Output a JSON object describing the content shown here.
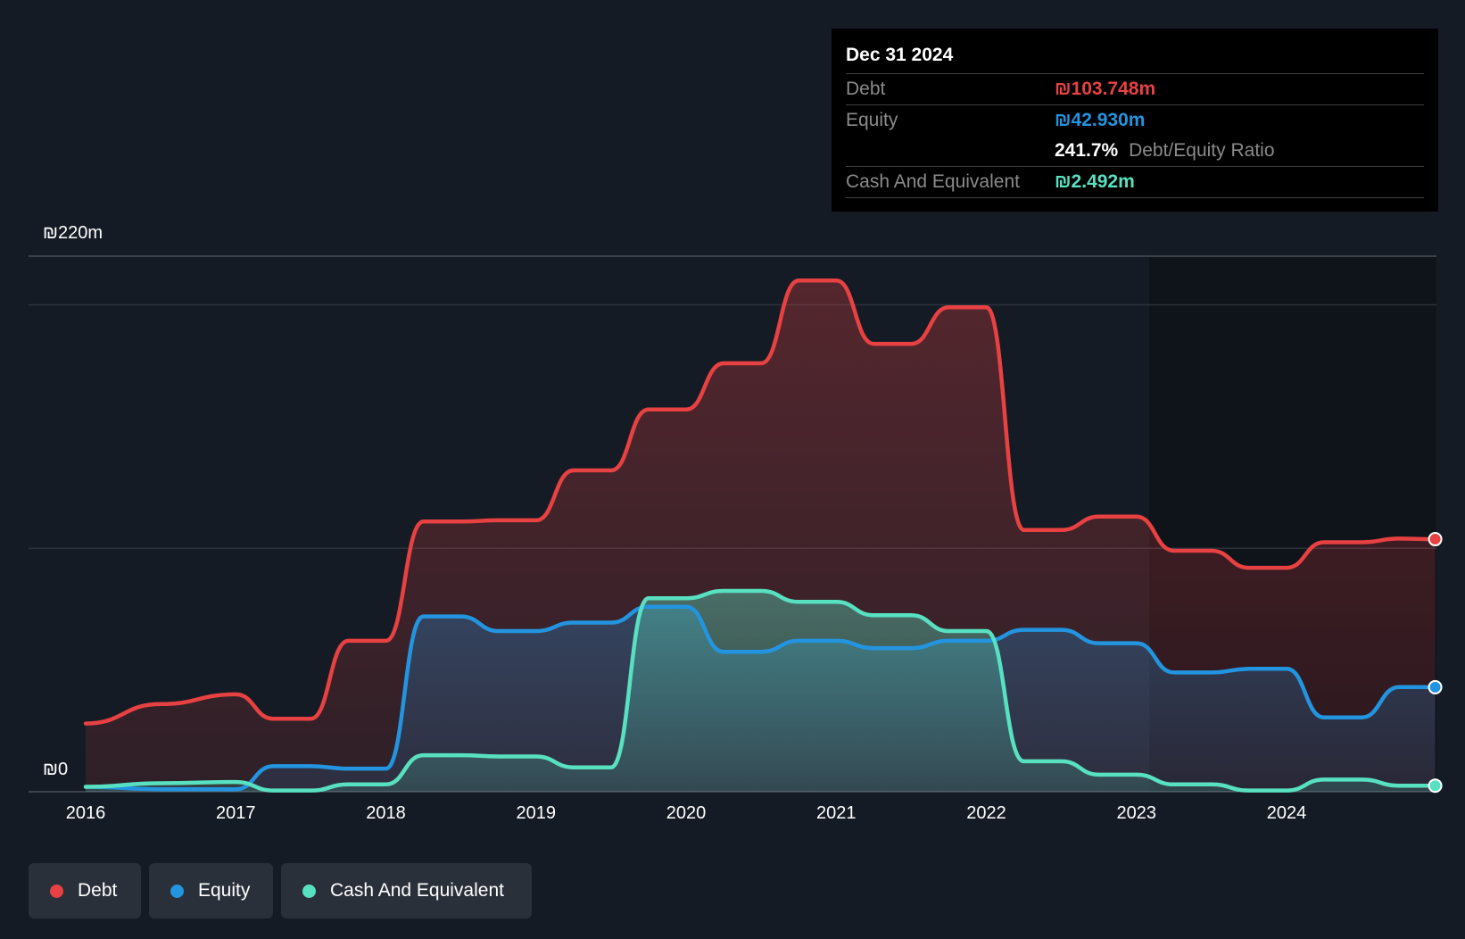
{
  "chart_data": {
    "type": "area",
    "ylim": [
      0,
      220
    ],
    "y_top_label": "₪220m",
    "y_bottom_label": "₪0",
    "x_ticks": [
      "2016",
      "2017",
      "2018",
      "2019",
      "2020",
      "2021",
      "2022",
      "2023",
      "2024"
    ],
    "x_range": [
      2016.0,
      2025.0
    ],
    "grid": true,
    "legend_position": "bottom-left",
    "series": [
      {
        "name": "Debt",
        "color": "#e84142",
        "x": [
          2016.0,
          2016.5,
          2017.0,
          2017.25,
          2017.5,
          2017.75,
          2018.0,
          2018.25,
          2018.5,
          2018.75,
          2019.0,
          2019.25,
          2019.5,
          2019.75,
          2020.0,
          2020.25,
          2020.5,
          2020.75,
          2021.0,
          2021.25,
          2021.5,
          2021.75,
          2022.0,
          2022.25,
          2022.5,
          2022.75,
          2023.0,
          2023.25,
          2023.5,
          2023.75,
          2024.0,
          2024.25,
          2024.5,
          2024.75,
          2024.99
        ],
        "values": [
          28,
          36,
          40,
          30,
          30,
          62,
          62,
          111,
          111,
          111.5,
          111.5,
          132,
          132,
          157,
          157,
          176,
          176,
          210,
          210,
          184,
          184,
          199,
          199,
          107.5,
          107.5,
          113,
          113,
          99,
          99,
          92,
          92,
          102.5,
          102.5,
          104,
          103.748
        ]
      },
      {
        "name": "Equity",
        "color": "#2394df",
        "x": [
          2016.0,
          2016.5,
          2017.0,
          2017.25,
          2017.5,
          2017.75,
          2018.0,
          2018.25,
          2018.5,
          2018.75,
          2019.0,
          2019.25,
          2019.5,
          2019.75,
          2020.0,
          2020.25,
          2020.5,
          2020.75,
          2021.0,
          2021.25,
          2021.5,
          2021.75,
          2022.0,
          2022.25,
          2022.5,
          2022.75,
          2023.0,
          2023.25,
          2023.5,
          2023.75,
          2024.0,
          2024.25,
          2024.5,
          2024.75,
          2024.99
        ],
        "values": [
          2,
          1,
          1,
          10.5,
          10.5,
          9.5,
          9.5,
          72,
          72,
          66,
          66,
          69.5,
          69.5,
          76,
          76,
          57.5,
          57.5,
          62,
          62,
          59,
          59,
          62,
          62,
          66.5,
          66.5,
          61,
          61,
          49,
          49,
          50.5,
          50.5,
          30.5,
          30.5,
          43,
          42.93
        ]
      },
      {
        "name": "Cash And Equivalent",
        "color": "#58e1c1",
        "x": [
          2016.0,
          2016.5,
          2017.0,
          2017.25,
          2017.5,
          2017.75,
          2018.0,
          2018.25,
          2018.5,
          2018.75,
          2019.0,
          2019.25,
          2019.5,
          2019.75,
          2020.0,
          2020.25,
          2020.5,
          2020.75,
          2021.0,
          2021.25,
          2021.5,
          2021.75,
          2022.0,
          2022.25,
          2022.5,
          2022.75,
          2023.0,
          2023.25,
          2023.5,
          2023.75,
          2024.0,
          2024.25,
          2024.5,
          2024.75,
          2024.99
        ],
        "values": [
          2,
          3.5,
          4,
          0.5,
          0.5,
          3,
          3,
          15,
          15,
          14.5,
          14.5,
          10,
          10,
          79.5,
          79.5,
          82.5,
          82.5,
          78,
          78,
          72.5,
          72.5,
          66,
          66,
          12.5,
          12.5,
          7,
          7,
          3,
          3,
          0.5,
          0.5,
          5,
          5,
          2.5,
          2.492
        ]
      }
    ]
  },
  "tooltip": {
    "date": "Dec 31 2024",
    "debt_label": "Debt",
    "debt_value": "₪103.748m",
    "equity_label": "Equity",
    "equity_value": "₪42.930m",
    "ratio_value": "241.7%",
    "ratio_label": "Debt/Equity Ratio",
    "cash_label": "Cash And Equivalent",
    "cash_value": "₪2.492m"
  },
  "legend": [
    {
      "label": "Debt",
      "color": "#e84142"
    },
    {
      "label": "Equity",
      "color": "#2394df"
    },
    {
      "label": "Cash And Equivalent",
      "color": "#58e1c1"
    }
  ]
}
